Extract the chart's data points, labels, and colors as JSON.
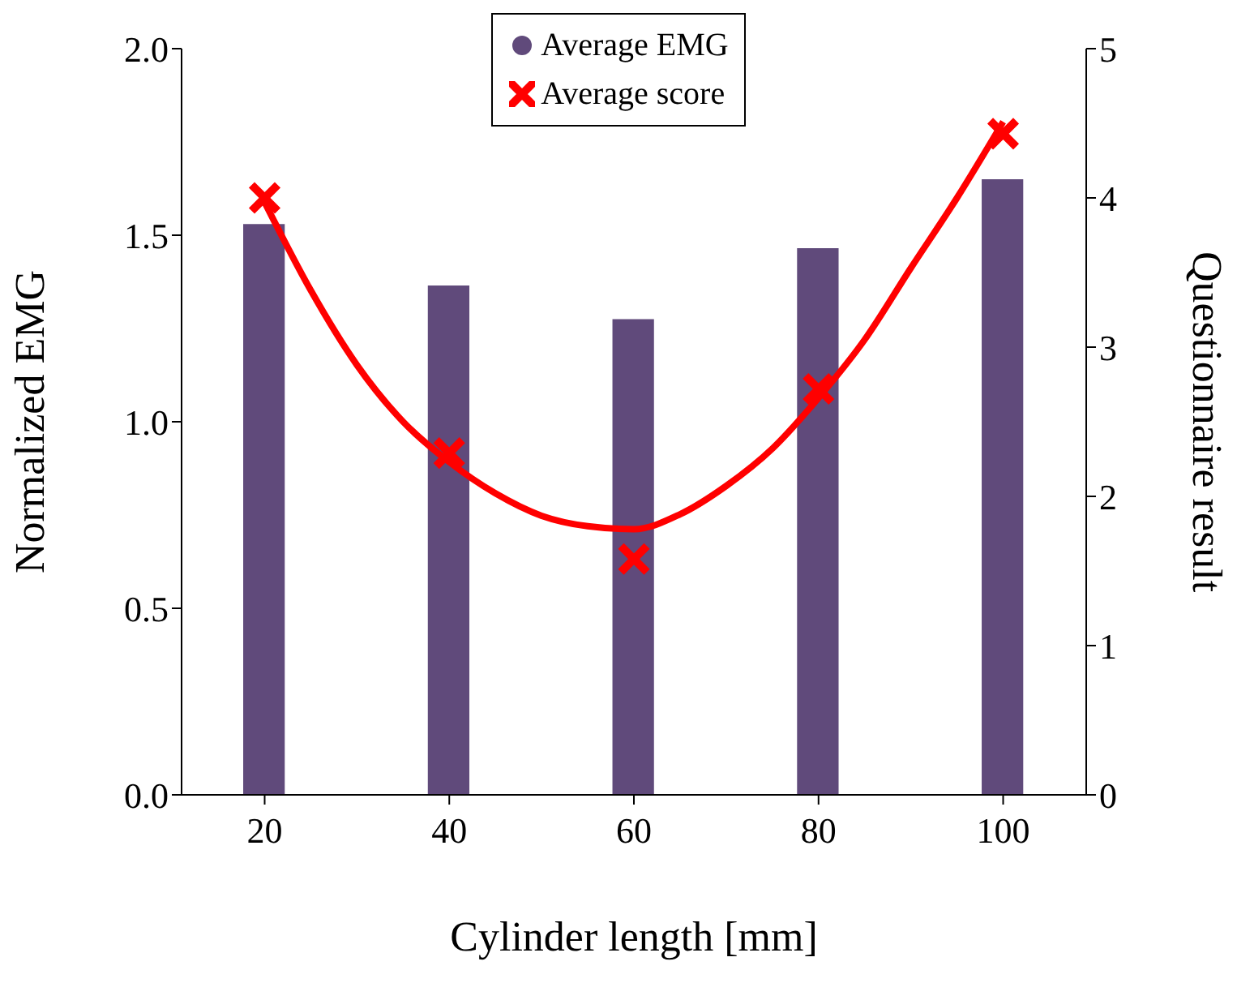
{
  "chart_data": {
    "type": "bar",
    "xlabel": "Cylinder length [mm]",
    "ylabel": "Normalized EMG",
    "y2label": "Questionnaire result",
    "x": [
      20,
      40,
      60,
      80,
      100
    ],
    "xlim": [
      11,
      109
    ],
    "xticks": [
      20,
      40,
      60,
      80,
      100
    ],
    "ylim": [
      0,
      2
    ],
    "yticks": [
      {
        "value": 0,
        "label": "0.0"
      },
      {
        "value": 0.5,
        "label": "0.5"
      },
      {
        "value": 1,
        "label": "1.0"
      },
      {
        "value": 1.5,
        "label": "1.5"
      },
      {
        "value": 2,
        "label": "2.0"
      }
    ],
    "y2lim": [
      0,
      5
    ],
    "y2ticks": [
      0,
      1,
      2,
      3,
      4,
      5
    ],
    "legend": "top",
    "series": [
      {
        "name": "Average EMG",
        "color": "#604a7b",
        "values": [
          1.53,
          1.365,
          1.275,
          1.465,
          1.65
        ]
      },
      {
        "name": "Average score",
        "type": "scatter",
        "axis": "y2",
        "marker": "cross",
        "color": "#ff0000",
        "values": [
          4.0,
          2.29,
          1.58,
          2.72,
          4.43
        ]
      },
      {
        "type": "line",
        "axis": "y2",
        "color": "#ff0000",
        "x": [
          20,
          25,
          30,
          35,
          40,
          45,
          50,
          55,
          60,
          65,
          70,
          75,
          80,
          85,
          90,
          95,
          100
        ],
        "values": [
          3.97,
          3.38,
          2.88,
          2.5,
          2.23,
          2.02,
          1.87,
          1.8,
          1.78,
          1.88,
          2.07,
          2.32,
          2.66,
          3.05,
          3.53,
          4.0,
          4.51
        ]
      }
    ]
  }
}
